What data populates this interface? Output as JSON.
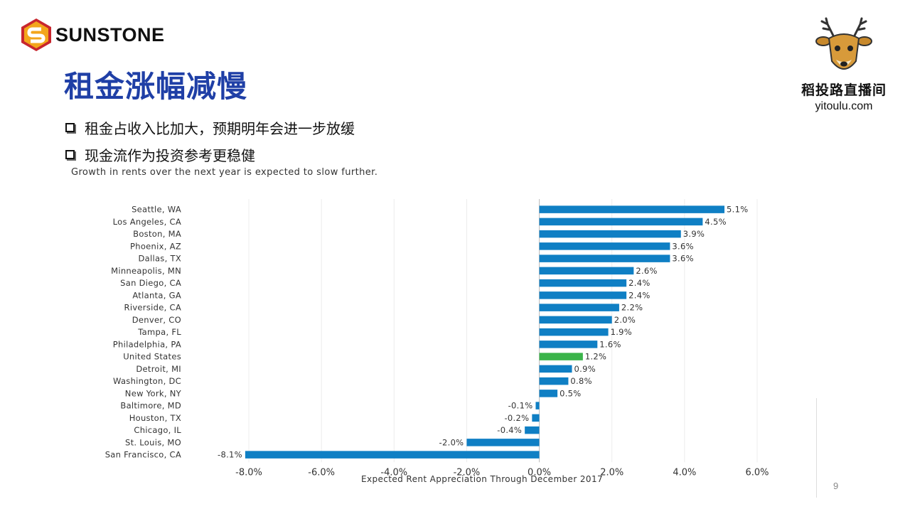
{
  "header": {
    "logo_text": "SUNSTONE",
    "title": "租金涨幅减慢"
  },
  "bullets": [
    "租金占收入比加大，预期明年会进一步放缓",
    "现金流作为投资参考更稳健"
  ],
  "brand": {
    "name": "稻投路直播间",
    "url": "yitoulu.com"
  },
  "page_number": "9",
  "colors": {
    "bar": "#0f7fc4",
    "highlight": "#3bb44a",
    "title": "#1f3fa6",
    "logo_orange": "#f3a51b",
    "logo_red": "#c8262e"
  },
  "chart_data": {
    "type": "bar",
    "orientation": "horizontal",
    "title": "Growth in rents over the next year is expected to slow further.",
    "xlabel": "Expected Rent Appreciation Through December 2017",
    "ylabel": "",
    "xlim": [
      -8.0,
      6.0
    ],
    "xticks": [
      "-8.0%",
      "-6.0%",
      "-4.0%",
      "-2.0%",
      "0.0%",
      "2.0%",
      "4.0%",
      "6.0%"
    ],
    "xtick_values": [
      -8,
      -6,
      -4,
      -2,
      0,
      2,
      4,
      6
    ],
    "grid": true,
    "highlight_category": "United States",
    "categories": [
      "Seattle, WA",
      "Los Angeles, CA",
      "Boston, MA",
      "Phoenix, AZ",
      "Dallas, TX",
      "Minneapolis, MN",
      "San Diego, CA",
      "Atlanta, GA",
      "Riverside, CA",
      "Denver, CO",
      "Tampa, FL",
      "Philadelphia, PA",
      "United States",
      "Detroit, MI",
      "Washington, DC",
      "New York, NY",
      "Baltimore, MD",
      "Houston, TX",
      "Chicago, IL",
      "St. Louis, MO",
      "San Francisco, CA"
    ],
    "values": [
      5.1,
      4.5,
      3.9,
      3.6,
      3.6,
      2.6,
      2.4,
      2.4,
      2.2,
      2.0,
      1.9,
      1.6,
      1.2,
      0.9,
      0.8,
      0.5,
      -0.1,
      -0.2,
      -0.4,
      -2.0,
      -8.1
    ],
    "value_labels": [
      "5.1%",
      "4.5%",
      "3.9%",
      "3.6%",
      "3.6%",
      "2.6%",
      "2.4%",
      "2.4%",
      "2.2%",
      "2.0%",
      "1.9%",
      "1.6%",
      "1.2%",
      "0.9%",
      "0.8%",
      "0.5%",
      "-0.1%",
      "-0.2%",
      "-0.4%",
      "-2.0%",
      "-8.1%"
    ]
  }
}
